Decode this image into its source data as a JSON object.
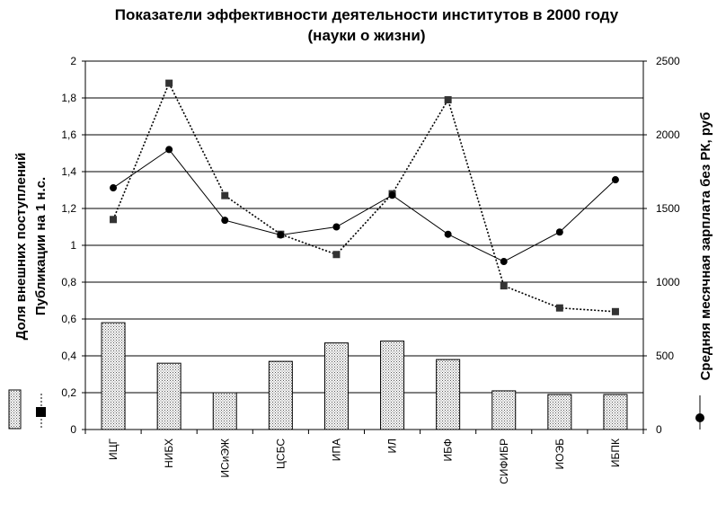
{
  "chart_data": {
    "type": "bar",
    "title": "Показатели эффективности деятельности институтов в 2000 году",
    "subtitle": "(науки о жизни)",
    "ylabel_left_line1": "Доля внешних поступлений",
    "ylabel_left_line2": "Публикации на 1 н.с.",
    "ylabel_right": "Средняя месячная зарплата без РК, руб",
    "categories": [
      "ИЦГ",
      "НИБХ",
      "ИСиЭЖ",
      "ЦСБС",
      "ИПА",
      "ИЛ",
      "ИБФ",
      "СИФИБР",
      "ИОЭБ",
      "ИБПК"
    ],
    "ylim_left": [
      0,
      2
    ],
    "yticks_left": [
      "0",
      "0,2",
      "0,4",
      "0,6",
      "0,8",
      "1",
      "1,2",
      "1,4",
      "1,6",
      "1,8",
      "2"
    ],
    "ylim_right": [
      0,
      2500
    ],
    "yticks_right": [
      "0",
      "500",
      "1000",
      "1500",
      "2000",
      "2500"
    ],
    "grid": true,
    "legend": "left-bottom",
    "series": [
      {
        "kind": "bar",
        "axis": "left",
        "pattern": "dotted",
        "values": [
          0.58,
          0.36,
          0.2,
          0.37,
          0.47,
          0.48,
          0.38,
          0.21,
          0.19,
          0.19
        ]
      },
      {
        "kind": "line",
        "axis": "left",
        "style": "dotted",
        "marker": "square",
        "values": [
          1.14,
          1.88,
          1.27,
          1.06,
          0.95,
          1.28,
          1.79,
          0.78,
          0.66,
          0.64
        ]
      },
      {
        "kind": "line",
        "axis": "right",
        "style": "solid",
        "marker": "circle",
        "values": [
          1640,
          1900,
          1420,
          1320,
          1375,
          1590,
          1325,
          1140,
          1340,
          1695
        ]
      }
    ]
  }
}
